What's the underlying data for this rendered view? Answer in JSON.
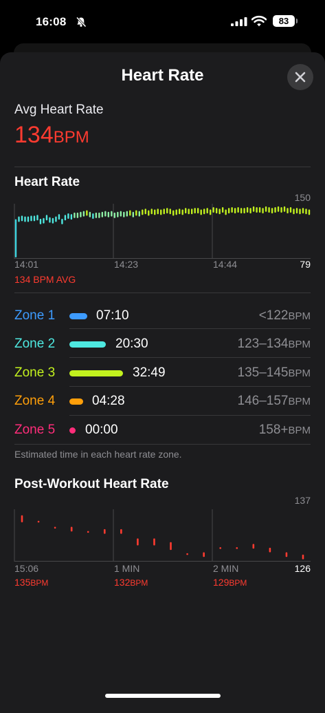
{
  "status": {
    "time": "16:08",
    "battery": "83"
  },
  "sheet_title": "Heart Rate",
  "avg": {
    "label": "Avg Heart Rate",
    "value": "134",
    "unit": "BPM"
  },
  "chart_data": [
    {
      "type": "line",
      "title": "Heart Rate",
      "x_ticks": [
        "14:01",
        "14:23",
        "14:44"
      ],
      "ylim": [
        79,
        150
      ],
      "y_max_label": "150",
      "y_min_label": "79",
      "avg_label": "134 BPM AVG",
      "values": [
        88,
        130,
        131,
        130,
        130,
        131,
        131,
        132,
        127,
        128,
        132,
        129,
        128,
        130,
        133,
        127,
        132,
        134,
        133,
        135,
        135,
        136,
        137,
        138,
        136,
        134,
        135,
        135,
        136,
        137,
        136,
        137,
        135,
        136,
        137,
        136,
        137,
        138,
        136,
        138,
        137,
        139,
        140,
        138,
        140,
        139,
        140,
        139,
        140,
        141,
        140,
        138,
        139,
        140,
        139,
        141,
        140,
        140,
        141,
        141,
        139,
        140,
        141,
        139,
        142,
        141,
        140,
        142,
        139,
        141,
        142,
        141,
        142,
        141,
        141,
        142,
        141,
        143,
        142,
        142,
        141,
        143,
        142,
        141,
        142,
        143,
        142,
        143,
        141,
        142,
        140,
        141,
        140,
        141,
        140,
        139
      ]
    },
    {
      "type": "bar",
      "title": "Post-Workout Heart Rate",
      "x_ticks": [
        "15:06",
        "1 MIN",
        "2 MIN"
      ],
      "x_values": [
        "135BPM",
        "132BPM",
        "129BPM"
      ],
      "ylim": [
        126,
        137
      ],
      "y_max_label": "137",
      "y_min_label": "126",
      "values": [
        [
          134.5,
          136
        ],
        [
          134.5,
          134.8
        ],
        [
          133.2,
          133.5
        ],
        [
          132.5,
          133.5
        ],
        [
          132.3,
          132.6
        ],
        [
          132,
          133
        ],
        [
          132,
          133
        ],
        [
          129.5,
          131
        ],
        [
          129.5,
          131
        ],
        [
          128.5,
          130.2
        ],
        [
          127.5,
          127.8
        ],
        [
          127,
          128
        ],
        [
          128.8,
          129.1
        ],
        [
          128.8,
          129.1
        ],
        [
          128.8,
          129.8
        ],
        [
          128,
          129
        ],
        [
          127,
          128
        ],
        [
          126.5,
          127.5
        ]
      ],
      "color": "#ff3b30"
    }
  ],
  "zones": [
    {
      "name": "Zone 1",
      "time": "07:10",
      "range": "<122",
      "unit": "BPM",
      "color": "#3d9bff"
    },
    {
      "name": "Zone 2",
      "time": "20:30",
      "range": "123–134",
      "unit": "BPM",
      "color": "#4ee8e0"
    },
    {
      "name": "Zone 3",
      "time": "32:49",
      "range": "135–145",
      "unit": "BPM",
      "color": "#c2f11e"
    },
    {
      "name": "Zone 4",
      "time": "04:28",
      "range": "146–157",
      "unit": "BPM",
      "color": "#ff9f0a"
    },
    {
      "name": "Zone 5",
      "time": "00:00",
      "range": "158+",
      "unit": "BPM",
      "color": "#ff2d7a"
    }
  ],
  "zones_note": "Estimated time in each heart rate zone.",
  "colors": {
    "accent_red": "#ff3b30",
    "sheet_bg": "#1c1c1e"
  }
}
